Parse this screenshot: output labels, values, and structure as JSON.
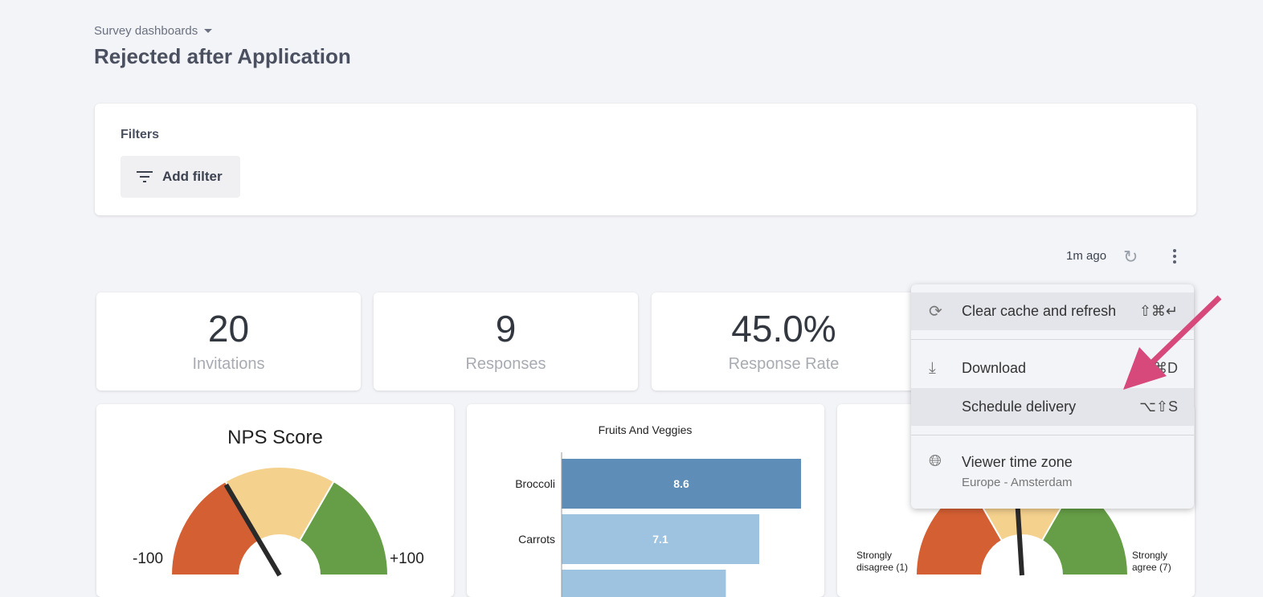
{
  "breadcrumb": "Survey dashboards",
  "title": "Rejected after Application",
  "filters": {
    "label": "Filters",
    "add_label": "Add filter"
  },
  "toolbar": {
    "updated": "1m ago"
  },
  "kpis": [
    {
      "value": "20",
      "label": "Invitations"
    },
    {
      "value": "9",
      "label": "Responses"
    },
    {
      "value": "45.0%",
      "label": "Response Rate"
    }
  ],
  "nps": {
    "title": "NPS Score",
    "min": "-100",
    "max": "+100",
    "value_fraction": 0.33,
    "colors": [
      "#d45f33",
      "#f5d18e",
      "#659e46"
    ]
  },
  "bar_chart": {
    "title": "Fruits And Veggies",
    "categories": [
      "Broccoli",
      "Carrots",
      ""
    ],
    "values": [
      8.6,
      7.1,
      5.9
    ],
    "labels": [
      "8.6",
      "7.1",
      ""
    ],
    "colors": [
      "#5e8db8",
      "#9dc3e0",
      "#9dc3e0"
    ],
    "max": 8.6
  },
  "agree": {
    "min": "Strongly disagree (1)",
    "min_l1": "Strongly",
    "min_l2": "disagree (1)",
    "max_l1": "Strongly",
    "max_l2": "agree (7)",
    "value_fraction": 0.48
  },
  "menu": {
    "items": [
      {
        "label": "Clear cache and refresh",
        "shortcut": "⇧⌘↵"
      },
      {
        "label": "Download",
        "shortcut": "⌘D"
      },
      {
        "label": "Schedule delivery",
        "shortcut": "⌥⇧S"
      },
      {
        "label": "Viewer time zone",
        "sub": "Europe - Amsterdam"
      }
    ]
  },
  "annotation_color": "#d6497a"
}
